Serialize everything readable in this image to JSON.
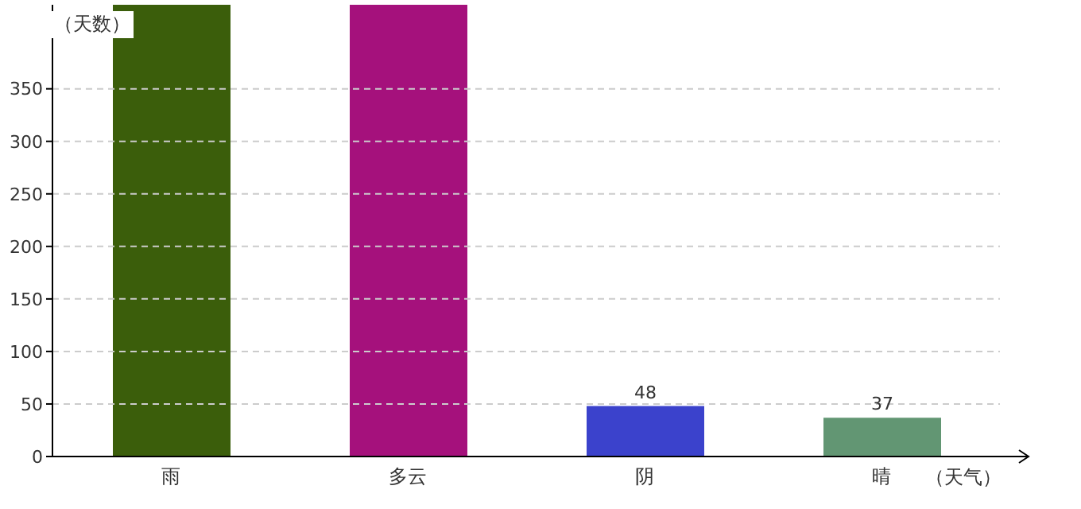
{
  "chart_data": {
    "type": "bar",
    "xlabel": "（天气）",
    "ylabel": "（天数）",
    "categories": [
      "雨",
      "多云",
      "阴",
      "晴"
    ],
    "values": [
      430,
      430,
      48,
      37
    ],
    "colors": [
      "#3b5e0b",
      "#a5117c",
      "#3b42cc",
      "#629673"
    ],
    "value_labels": [
      null,
      null,
      "48",
      "37"
    ],
    "ylim": [
      0,
      430
    ],
    "yticks": [
      0,
      50,
      100,
      150,
      200,
      250,
      300,
      350
    ],
    "grid": "y"
  }
}
